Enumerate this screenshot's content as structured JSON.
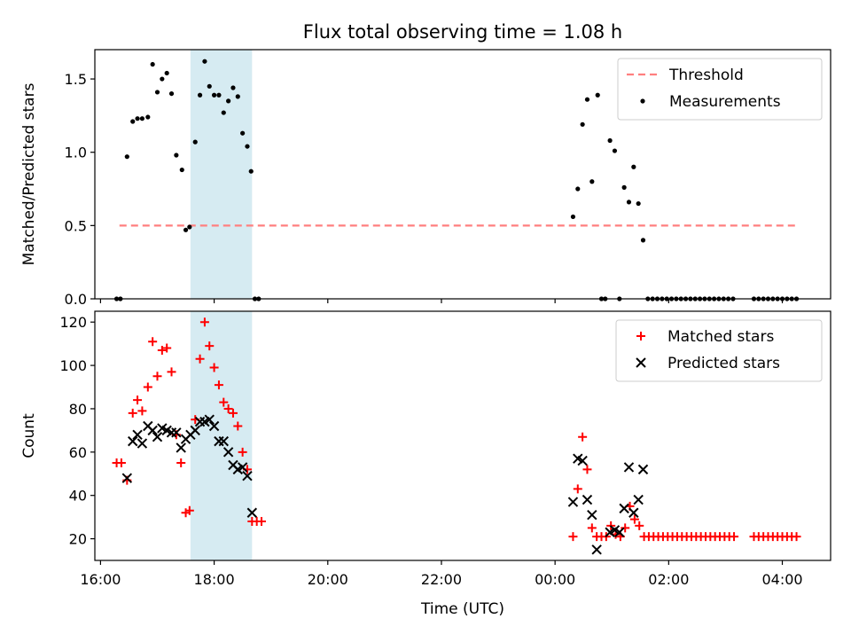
{
  "title": "Flux total observing time = 1.08 h",
  "colors": {
    "threshold": "#ff7f7f",
    "measurement": "#000000",
    "matched": "#ff0000",
    "predicted": "#000000",
    "highlight": "#add8e6"
  },
  "chart_data": [
    {
      "type": "scatter",
      "ylabel": "Matched/Predicted stars",
      "xlim": [
        "15:54",
        "04:51"
      ],
      "ylim": [
        0,
        1.7
      ],
      "yticks": [
        0.0,
        0.5,
        1.0,
        1.5
      ],
      "yticklabels": [
        "0.0",
        "0.5",
        "1.0",
        "1.5"
      ],
      "highlight_span": [
        "17:35",
        "18:40"
      ],
      "threshold": {
        "name": "Threshold",
        "y": 0.5,
        "x_range": [
          "16:20",
          "04:15"
        ]
      },
      "legend": {
        "position": "top-right",
        "entries": [
          "Threshold",
          "Measurements"
        ]
      },
      "series": [
        {
          "name": "Measurements",
          "marker": "dot",
          "points": [
            [
              "16:17",
              0.0
            ],
            [
              "16:21",
              0.0
            ],
            [
              "16:28",
              0.97
            ],
            [
              "16:34",
              1.21
            ],
            [
              "16:39",
              1.23
            ],
            [
              "16:44",
              1.23
            ],
            [
              "16:50",
              1.24
            ],
            [
              "16:55",
              1.6
            ],
            [
              "17:00",
              1.41
            ],
            [
              "17:05",
              1.5
            ],
            [
              "17:10",
              1.54
            ],
            [
              "17:15",
              1.4
            ],
            [
              "17:20",
              0.98
            ],
            [
              "17:26",
              0.88
            ],
            [
              "17:30",
              0.47
            ],
            [
              "17:34",
              0.49
            ],
            [
              "17:40",
              1.07
            ],
            [
              "17:45",
              1.39
            ],
            [
              "17:50",
              1.62
            ],
            [
              "17:55",
              1.45
            ],
            [
              "18:00",
              1.39
            ],
            [
              "18:05",
              1.39
            ],
            [
              "18:10",
              1.27
            ],
            [
              "18:15",
              1.35
            ],
            [
              "18:20",
              1.44
            ],
            [
              "18:25",
              1.38
            ],
            [
              "18:30",
              1.13
            ],
            [
              "18:35",
              1.04
            ],
            [
              "18:39",
              0.87
            ],
            [
              "18:43",
              0.0
            ],
            [
              "18:47",
              0.0
            ],
            [
              "00:19",
              0.56
            ],
            [
              "00:24",
              0.75
            ],
            [
              "00:29",
              1.19
            ],
            [
              "00:34",
              1.36
            ],
            [
              "00:39",
              0.8
            ],
            [
              "00:45",
              1.39
            ],
            [
              "00:49",
              0.0
            ],
            [
              "00:53",
              0.0
            ],
            [
              "00:58",
              1.08
            ],
            [
              "01:03",
              1.01
            ],
            [
              "01:08",
              0.0
            ],
            [
              "01:13",
              0.76
            ],
            [
              "01:18",
              0.66
            ],
            [
              "01:23",
              0.9
            ],
            [
              "01:28",
              0.65
            ],
            [
              "01:33",
              0.4
            ],
            [
              "01:38",
              0.0
            ],
            [
              "01:43",
              0.0
            ],
            [
              "01:48",
              0.0
            ],
            [
              "01:53",
              0.0
            ],
            [
              "01:58",
              0.0
            ],
            [
              "02:03",
              0.0
            ],
            [
              "02:08",
              0.0
            ],
            [
              "02:13",
              0.0
            ],
            [
              "02:18",
              0.0
            ],
            [
              "02:23",
              0.0
            ],
            [
              "02:28",
              0.0
            ],
            [
              "02:33",
              0.0
            ],
            [
              "02:38",
              0.0
            ],
            [
              "02:43",
              0.0
            ],
            [
              "02:48",
              0.0
            ],
            [
              "02:53",
              0.0
            ],
            [
              "02:58",
              0.0
            ],
            [
              "03:03",
              0.0
            ],
            [
              "03:08",
              0.0
            ],
            [
              "03:30",
              0.0
            ],
            [
              "03:35",
              0.0
            ],
            [
              "03:40",
              0.0
            ],
            [
              "03:45",
              0.0
            ],
            [
              "03:50",
              0.0
            ],
            [
              "03:55",
              0.0
            ],
            [
              "04:00",
              0.0
            ],
            [
              "04:05",
              0.0
            ],
            [
              "04:10",
              0.0
            ],
            [
              "04:15",
              0.0
            ]
          ]
        }
      ]
    },
    {
      "type": "scatter",
      "xlabel": "Time (UTC)",
      "ylabel": "Count",
      "xlim": [
        "15:54",
        "04:51"
      ],
      "ylim": [
        10,
        125
      ],
      "xticks": [
        "16:00",
        "18:00",
        "20:00",
        "22:00",
        "00:00",
        "02:00",
        "04:00"
      ],
      "xticklabels": [
        "16:00",
        "18:00",
        "20:00",
        "22:00",
        "00:00",
        "02:00",
        "04:00"
      ],
      "yticks": [
        20,
        40,
        60,
        80,
        100,
        120
      ],
      "yticklabels": [
        "20",
        "40",
        "60",
        "80",
        "100",
        "120"
      ],
      "highlight_span": [
        "17:35",
        "18:40"
      ],
      "legend": {
        "position": "top-right",
        "entries": [
          "Matched stars",
          "Predicted stars"
        ]
      },
      "series": [
        {
          "name": "Matched stars",
          "marker": "plus",
          "points": [
            [
              "16:17",
              55
            ],
            [
              "16:22",
              55
            ],
            [
              "16:28",
              47
            ],
            [
              "16:34",
              78
            ],
            [
              "16:39",
              84
            ],
            [
              "16:44",
              79
            ],
            [
              "16:50",
              90
            ],
            [
              "16:55",
              111
            ],
            [
              "17:00",
              95
            ],
            [
              "17:05",
              107
            ],
            [
              "17:10",
              108
            ],
            [
              "17:15",
              97
            ],
            [
              "17:20",
              68
            ],
            [
              "17:25",
              55
            ],
            [
              "17:30",
              32
            ],
            [
              "17:34",
              33
            ],
            [
              "17:40",
              75
            ],
            [
              "17:45",
              103
            ],
            [
              "17:50",
              120
            ],
            [
              "17:55",
              109
            ],
            [
              "18:00",
              99
            ],
            [
              "18:05",
              91
            ],
            [
              "18:10",
              83
            ],
            [
              "18:15",
              80
            ],
            [
              "18:20",
              78
            ],
            [
              "18:25",
              72
            ],
            [
              "18:30",
              60
            ],
            [
              "18:35",
              52
            ],
            [
              "18:40",
              28
            ],
            [
              "18:45",
              28
            ],
            [
              "18:50",
              28
            ],
            [
              "00:19",
              21
            ],
            [
              "00:24",
              43
            ],
            [
              "00:29",
              67
            ],
            [
              "00:34",
              52
            ],
            [
              "00:39",
              25
            ],
            [
              "00:44",
              21
            ],
            [
              "00:49",
              21
            ],
            [
              "00:54",
              21
            ],
            [
              "00:59",
              26
            ],
            [
              "01:04",
              22
            ],
            [
              "01:09",
              21
            ],
            [
              "01:14",
              25
            ],
            [
              "01:19",
              35
            ],
            [
              "01:24",
              29
            ],
            [
              "01:29",
              26
            ],
            [
              "01:34",
              21
            ],
            [
              "01:39",
              21
            ],
            [
              "01:44",
              21
            ],
            [
              "01:49",
              21
            ],
            [
              "01:54",
              21
            ],
            [
              "01:59",
              21
            ],
            [
              "02:04",
              21
            ],
            [
              "02:09",
              21
            ],
            [
              "02:14",
              21
            ],
            [
              "02:19",
              21
            ],
            [
              "02:24",
              21
            ],
            [
              "02:29",
              21
            ],
            [
              "02:34",
              21
            ],
            [
              "02:39",
              21
            ],
            [
              "02:44",
              21
            ],
            [
              "02:49",
              21
            ],
            [
              "02:54",
              21
            ],
            [
              "02:59",
              21
            ],
            [
              "03:04",
              21
            ],
            [
              "03:09",
              21
            ],
            [
              "03:30",
              21
            ],
            [
              "03:35",
              21
            ],
            [
              "03:40",
              21
            ],
            [
              "03:45",
              21
            ],
            [
              "03:50",
              21
            ],
            [
              "03:55",
              21
            ],
            [
              "04:00",
              21
            ],
            [
              "04:05",
              21
            ],
            [
              "04:10",
              21
            ],
            [
              "04:15",
              21
            ]
          ]
        },
        {
          "name": "Predicted stars",
          "marker": "x",
          "points": [
            [
              "16:28",
              48
            ],
            [
              "16:34",
              65
            ],
            [
              "16:39",
              68
            ],
            [
              "16:44",
              64
            ],
            [
              "16:50",
              72
            ],
            [
              "16:55",
              70
            ],
            [
              "17:00",
              67
            ],
            [
              "17:05",
              71
            ],
            [
              "17:10",
              70
            ],
            [
              "17:15",
              69
            ],
            [
              "17:20",
              69
            ],
            [
              "17:25",
              62
            ],
            [
              "17:30",
              66
            ],
            [
              "17:35",
              68
            ],
            [
              "17:40",
              70
            ],
            [
              "17:45",
              74
            ],
            [
              "17:50",
              74
            ],
            [
              "17:55",
              75
            ],
            [
              "18:00",
              72
            ],
            [
              "18:05",
              65
            ],
            [
              "18:10",
              65
            ],
            [
              "18:15",
              60
            ],
            [
              "18:20",
              54
            ],
            [
              "18:25",
              52
            ],
            [
              "18:30",
              53
            ],
            [
              "18:35",
              49
            ],
            [
              "18:40",
              32
            ],
            [
              "00:19",
              37
            ],
            [
              "00:24",
              57
            ],
            [
              "00:29",
              56
            ],
            [
              "00:34",
              38
            ],
            [
              "00:39",
              31
            ],
            [
              "00:44",
              15
            ],
            [
              "00:58",
              23
            ],
            [
              "01:03",
              24
            ],
            [
              "01:08",
              23
            ],
            [
              "01:13",
              34
            ],
            [
              "01:18",
              53
            ],
            [
              "01:23",
              32
            ],
            [
              "01:28",
              38
            ],
            [
              "01:33",
              52
            ]
          ]
        }
      ]
    }
  ]
}
